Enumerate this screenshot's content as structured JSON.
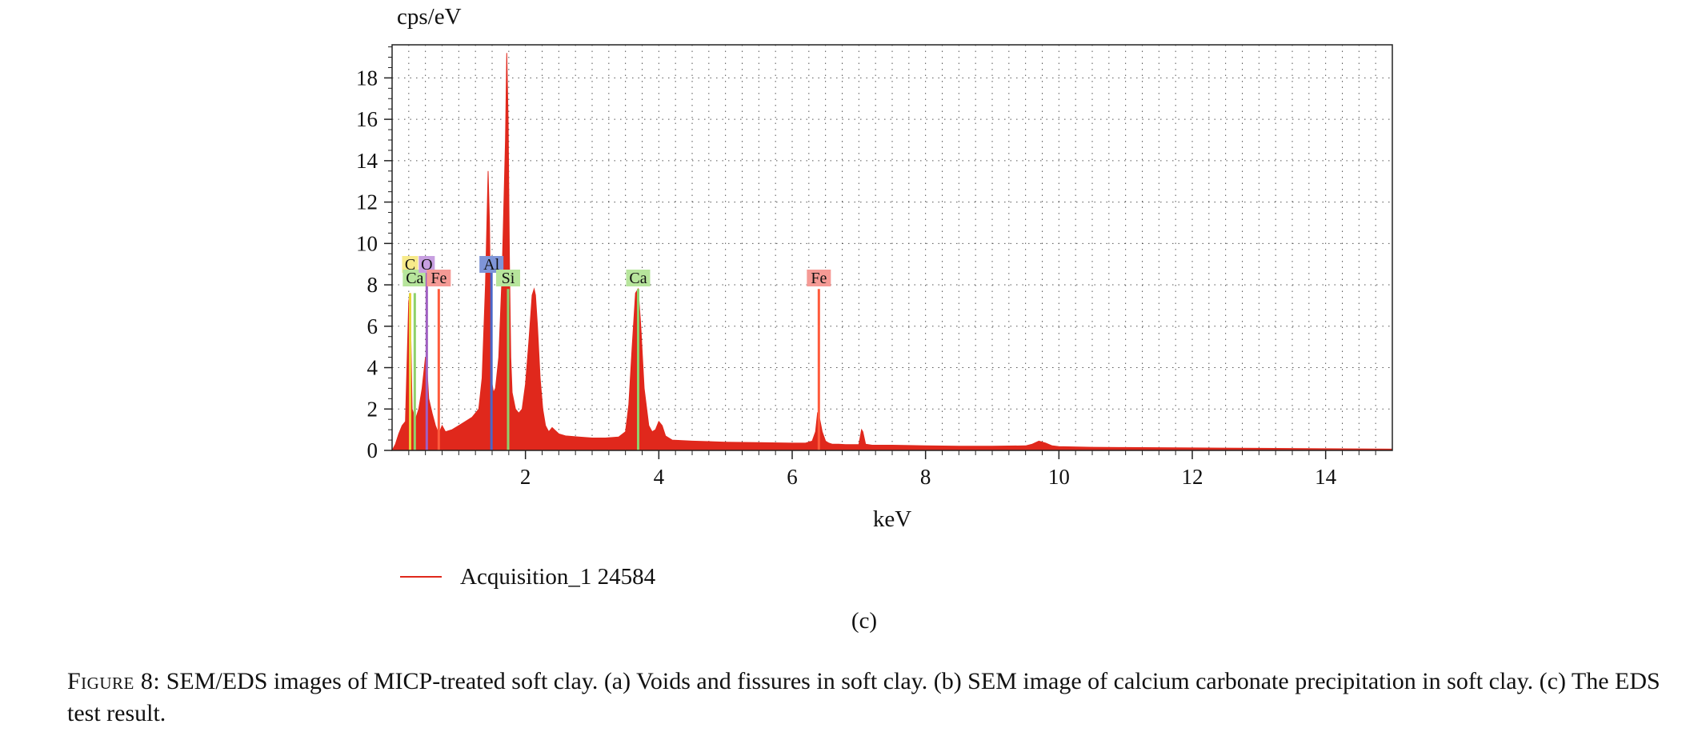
{
  "chart_data": {
    "type": "area",
    "title": "",
    "xlabel": "keV",
    "ylabel": "cps/eV",
    "xlim": [
      0,
      15
    ],
    "ylim": [
      0,
      19.6
    ],
    "x_ticks": [
      2,
      4,
      6,
      8,
      10,
      12,
      14
    ],
    "y_ticks": [
      0,
      2,
      4,
      6,
      8,
      10,
      12,
      14,
      16,
      18
    ],
    "grid": true,
    "legend_position": "bottom-left",
    "series": [
      {
        "name": "Acquisition_1 24584",
        "color": "#e0281c",
        "x": [
          0.0,
          0.05,
          0.1,
          0.15,
          0.2,
          0.25,
          0.27,
          0.3,
          0.35,
          0.4,
          0.45,
          0.5,
          0.52,
          0.55,
          0.6,
          0.65,
          0.7,
          0.75,
          0.8,
          0.9,
          1.0,
          1.1,
          1.2,
          1.3,
          1.35,
          1.4,
          1.44,
          1.46,
          1.48,
          1.5,
          1.52,
          1.55,
          1.6,
          1.65,
          1.7,
          1.72,
          1.74,
          1.76,
          1.78,
          1.8,
          1.85,
          1.9,
          1.95,
          2.0,
          2.05,
          2.1,
          2.13,
          2.15,
          2.18,
          2.22,
          2.26,
          2.3,
          2.35,
          2.4,
          2.5,
          2.6,
          2.8,
          3.0,
          3.2,
          3.4,
          3.5,
          3.55,
          3.6,
          3.65,
          3.69,
          3.73,
          3.78,
          3.85,
          3.9,
          3.95,
          4.0,
          4.05,
          4.1,
          4.2,
          4.5,
          5.0,
          5.5,
          6.0,
          6.2,
          6.3,
          6.35,
          6.38,
          6.4,
          6.42,
          6.45,
          6.5,
          6.55,
          6.6,
          6.7,
          6.8,
          7.0,
          7.04,
          7.06,
          7.1,
          7.2,
          7.5,
          8.0,
          8.5,
          9.0,
          9.5,
          9.6,
          9.7,
          9.8,
          9.9,
          10.0,
          10.5,
          11.0,
          11.5,
          12.0,
          13.0,
          14.0,
          15.0
        ],
        "y": [
          0.0,
          0.3,
          0.8,
          1.2,
          1.4,
          7.2,
          7.6,
          2.0,
          1.5,
          2.0,
          3.0,
          4.5,
          4.2,
          2.5,
          1.8,
          1.2,
          0.8,
          1.2,
          0.9,
          1.0,
          1.2,
          1.4,
          1.6,
          2.0,
          3.5,
          8.0,
          13.5,
          11.0,
          6.0,
          3.2,
          2.8,
          3.0,
          4.5,
          8.5,
          15.0,
          19.2,
          16.0,
          9.0,
          4.5,
          2.8,
          2.0,
          1.8,
          2.0,
          3.2,
          5.2,
          7.5,
          7.8,
          7.5,
          6.0,
          3.5,
          2.0,
          1.2,
          0.9,
          1.1,
          0.8,
          0.7,
          0.65,
          0.6,
          0.6,
          0.65,
          0.9,
          2.2,
          5.0,
          7.6,
          7.8,
          6.0,
          3.0,
          1.2,
          0.9,
          1.0,
          1.4,
          1.2,
          0.7,
          0.5,
          0.45,
          0.4,
          0.38,
          0.35,
          0.35,
          0.45,
          0.9,
          1.8,
          1.7,
          1.4,
          0.9,
          0.45,
          0.35,
          0.3,
          0.3,
          0.28,
          0.28,
          1.0,
          0.9,
          0.3,
          0.25,
          0.25,
          0.22,
          0.2,
          0.2,
          0.22,
          0.3,
          0.45,
          0.35,
          0.22,
          0.18,
          0.15,
          0.14,
          0.13,
          0.12,
          0.1,
          0.08,
          0.06
        ]
      }
    ],
    "element_markers": [
      {
        "element": "C",
        "x": 0.27,
        "height": 7.6,
        "line_color": "#e7d23a",
        "label_bg": "#f7ea8a",
        "label_row": 1
      },
      {
        "element": "Ca",
        "x": 0.34,
        "height": 7.6,
        "line_color": "#8fd16a",
        "label_bg": "#b7e59c",
        "label_row": 2
      },
      {
        "element": "O",
        "x": 0.52,
        "height": 8.6,
        "line_color": "#a05fc2",
        "label_bg": "#c79fe0",
        "label_row": 1
      },
      {
        "element": "Fe",
        "x": 0.7,
        "height": 7.8,
        "line_color": "#ff5a3c",
        "label_bg": "#f59a95",
        "label_row": 2
      },
      {
        "element": "Al",
        "x": 1.49,
        "height": 8.6,
        "line_color": "#4a66c8",
        "label_bg": "#7f95d8",
        "label_row": 1
      },
      {
        "element": "Si",
        "x": 1.74,
        "height": 7.8,
        "line_color": "#8fd16a",
        "label_bg": "#b7e59c",
        "label_row": 2
      },
      {
        "element": "Ca",
        "x": 3.69,
        "height": 7.8,
        "line_color": "#8fd16a",
        "label_bg": "#b7e59c",
        "label_row": 2
      },
      {
        "element": "Fe",
        "x": 6.4,
        "height": 7.8,
        "line_color": "#ff5a3c",
        "label_bg": "#f59a95",
        "label_row": 2
      }
    ]
  },
  "panel_label": "(c)",
  "caption": {
    "head": "Figure 8:",
    "text": "SEM/EDS images of MICP-treated soft clay. (a) Voids and fissures in soft clay. (b) SEM image of calcium carbonate precipitation in soft clay. (c) The EDS test result."
  }
}
